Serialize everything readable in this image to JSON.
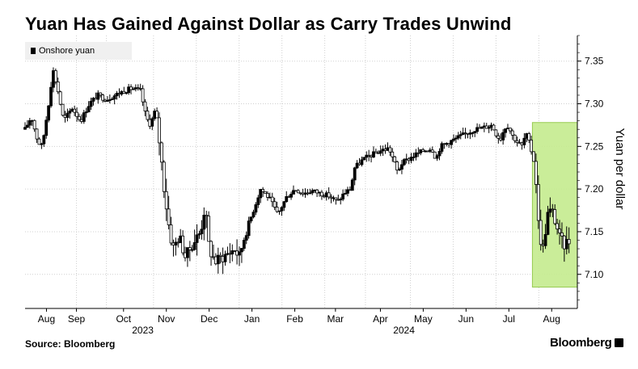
{
  "title": "Yuan Has Gained Against Dollar as Carry Trades Unwind",
  "source": "Source: Bloomberg",
  "brand": "Bloomberg",
  "colors": {
    "candle": "#000000",
    "highlight_fill": "#c5ec8e",
    "highlight_stroke": "#8cc63f",
    "grid": "#d0d0d0"
  },
  "chart_data": {
    "type": "candlestick",
    "title": "Yuan Has Gained Against Dollar as Carry Trades Unwind",
    "legend": [
      "Onshore yuan"
    ],
    "ylabel": "Yuan per dollar",
    "xlabel": "",
    "ylim": [
      7.06,
      7.38
    ],
    "yticks": [
      7.1,
      7.15,
      7.2,
      7.25,
      7.3,
      7.35
    ],
    "ytick_labels": [
      "7.10",
      "7.15",
      "7.20",
      "7.25",
      "7.30",
      "7.35"
    ],
    "x_month_labels": [
      "Aug",
      "Sep",
      "Oct",
      "Nov",
      "Dec",
      "Jan",
      "Feb",
      "Mar",
      "Apr",
      "May",
      "Jun",
      "Jul",
      "Aug"
    ],
    "x_month_positions": [
      0.5,
      1.2,
      2.3,
      3.3,
      4.3,
      5.3,
      6.3,
      7.25,
      8.3,
      9.3,
      10.3,
      11.3,
      12.3
    ],
    "year_labels": [
      "2023",
      "2024"
    ],
    "year_positions": [
      2.75,
      8.85
    ],
    "x_range": [
      0,
      12.9
    ],
    "highlight": {
      "x_from": 11.85,
      "x_to": 12.9,
      "y_from": 7.085,
      "y_to": 7.278,
      "label": ""
    },
    "series": [
      {
        "name": "Onshore yuan",
        "anchors": [
          [
            0.0,
            7.27
          ],
          [
            0.15,
            7.285
          ],
          [
            0.3,
            7.255
          ],
          [
            0.4,
            7.25
          ],
          [
            0.55,
            7.3
          ],
          [
            0.65,
            7.34
          ],
          [
            0.75,
            7.32
          ],
          [
            0.9,
            7.28
          ],
          [
            1.1,
            7.295
          ],
          [
            1.3,
            7.28
          ],
          [
            1.5,
            7.3
          ],
          [
            1.7,
            7.31
          ],
          [
            1.9,
            7.305
          ],
          [
            2.1,
            7.31
          ],
          [
            2.3,
            7.315
          ],
          [
            2.5,
            7.318
          ],
          [
            2.7,
            7.315
          ],
          [
            2.8,
            7.29
          ],
          [
            2.9,
            7.275
          ],
          [
            3.0,
            7.285
          ],
          [
            3.05,
            7.295
          ],
          [
            3.15,
            7.25
          ],
          [
            3.25,
            7.2
          ],
          [
            3.35,
            7.16
          ],
          [
            3.45,
            7.13
          ],
          [
            3.6,
            7.145
          ],
          [
            3.75,
            7.12
          ],
          [
            3.9,
            7.135
          ],
          [
            4.1,
            7.15
          ],
          [
            4.2,
            7.18
          ],
          [
            4.3,
            7.13
          ],
          [
            4.45,
            7.115
          ],
          [
            4.6,
            7.12
          ],
          [
            4.75,
            7.125
          ],
          [
            4.9,
            7.13
          ],
          [
            5.0,
            7.12
          ],
          [
            5.15,
            7.15
          ],
          [
            5.3,
            7.17
          ],
          [
            5.5,
            7.2
          ],
          [
            5.7,
            7.19
          ],
          [
            5.9,
            7.17
          ],
          [
            6.1,
            7.19
          ],
          [
            6.3,
            7.2
          ],
          [
            6.5,
            7.195
          ],
          [
            6.7,
            7.198
          ],
          [
            6.9,
            7.195
          ],
          [
            7.1,
            7.192
          ],
          [
            7.3,
            7.185
          ],
          [
            7.45,
            7.195
          ],
          [
            7.6,
            7.2
          ],
          [
            7.7,
            7.225
          ],
          [
            7.9,
            7.235
          ],
          [
            8.1,
            7.24
          ],
          [
            8.3,
            7.245
          ],
          [
            8.5,
            7.248
          ],
          [
            8.6,
            7.235
          ],
          [
            8.7,
            7.22
          ],
          [
            8.8,
            7.23
          ],
          [
            8.95,
            7.235
          ],
          [
            9.1,
            7.24
          ],
          [
            9.3,
            7.245
          ],
          [
            9.5,
            7.248
          ],
          [
            9.6,
            7.235
          ],
          [
            9.7,
            7.25
          ],
          [
            9.9,
            7.255
          ],
          [
            10.1,
            7.26
          ],
          [
            10.3,
            7.265
          ],
          [
            10.5,
            7.27
          ],
          [
            10.7,
            7.272
          ],
          [
            10.9,
            7.275
          ],
          [
            11.0,
            7.265
          ],
          [
            11.1,
            7.258
          ],
          [
            11.2,
            7.272
          ],
          [
            11.3,
            7.275
          ],
          [
            11.35,
            7.265
          ],
          [
            11.5,
            7.255
          ],
          [
            11.6,
            7.25
          ],
          [
            11.7,
            7.265
          ],
          [
            11.8,
            7.25
          ],
          [
            11.9,
            7.23
          ],
          [
            11.95,
            7.2
          ],
          [
            12.0,
            7.15
          ],
          [
            12.1,
            7.13
          ],
          [
            12.2,
            7.17
          ],
          [
            12.3,
            7.175
          ],
          [
            12.4,
            7.16
          ],
          [
            12.5,
            7.14
          ],
          [
            12.6,
            7.135
          ],
          [
            12.7,
            7.14
          ],
          [
            12.75,
            7.135
          ]
        ]
      }
    ]
  }
}
